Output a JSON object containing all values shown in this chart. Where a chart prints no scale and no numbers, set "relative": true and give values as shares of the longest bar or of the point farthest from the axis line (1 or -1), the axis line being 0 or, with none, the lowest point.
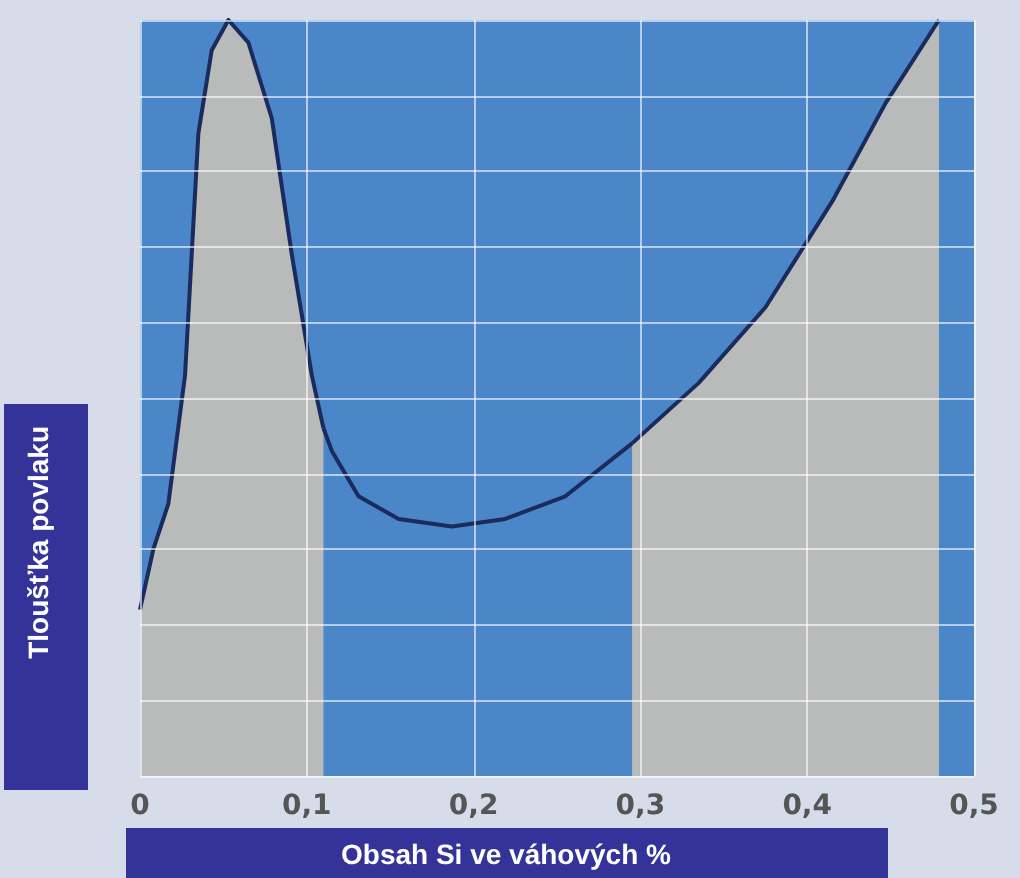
{
  "chart_data": {
    "type": "area",
    "relative": true,
    "xlabel": "Obsah Si ve váhových %",
    "ylabel": "Tloušťka povlaku",
    "xlim": [
      0,
      0.5
    ],
    "xticks": [
      0,
      {
        "value": 0.1,
        "label": "0,1"
      },
      {
        "value": 0.2,
        "label": "0,2"
      },
      {
        "value": 0.3,
        "label": "0,3"
      },
      {
        "value": 0.4,
        "label": "0,4"
      },
      {
        "value": 0.5,
        "label": "0,5"
      }
    ],
    "grid": true,
    "marker": "none",
    "line_style": "solid",
    "bands": [
      {
        "axis": "x",
        "from": 0,
        "to": 0.5,
        "color": "#4a86c8"
      }
    ],
    "series": [
      {
        "color": "#1a2b5e",
        "x": [
          0,
          0.008,
          0.017,
          0.027,
          0.035,
          0.043,
          0.053,
          0.065,
          0.079,
          0.091,
          0.103,
          0.11
        ],
        "values": [
          0.22,
          0.3,
          0.36,
          0.53,
          0.85,
          0.96,
          1,
          0.97,
          0.87,
          0.69,
          0.53,
          0.46
        ]
      },
      {
        "type": "line",
        "color": "#1a2b5e",
        "x": [
          0.11,
          0.115,
          0.131,
          0.155,
          0.187,
          0.219,
          0.255,
          0.295
        ],
        "values": [
          0.46,
          0.43,
          0.37,
          0.34,
          0.33,
          0.34,
          0.37,
          0.44
        ]
      },
      {
        "color": "#1a2b5e",
        "x": [
          0.295,
          0.335,
          0.375,
          0.415,
          0.447,
          0.479
        ],
        "values": [
          0.44,
          0.52,
          0.62,
          0.76,
          0.89,
          1
        ]
      }
    ]
  }
}
